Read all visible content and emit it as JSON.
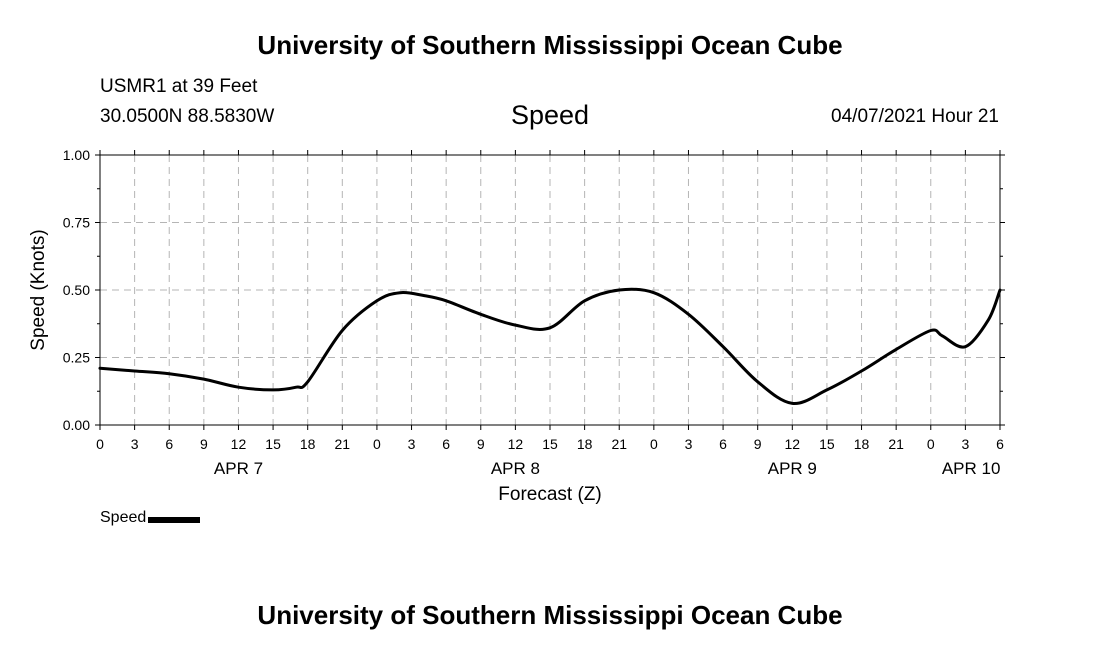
{
  "header": {
    "title_top": "University of Southern Mississippi Ocean Cube",
    "station": "USMR1 at 39 Feet",
    "coords": "30.0500N  88.5830W",
    "datestamp": "04/07/2021 Hour 21"
  },
  "footer": {
    "title_bottom": "University of Southern Mississippi Ocean Cube"
  },
  "legend": {
    "label": "Speed",
    "color": "#000000"
  },
  "chart_data": {
    "type": "line",
    "title": "Speed",
    "xlabel": "Forecast (Z)",
    "ylabel": "Speed (Knots)",
    "xlim": [
      0,
      78
    ],
    "ylim": [
      0,
      1
    ],
    "grid": true,
    "yticks": [
      0,
      0.25,
      0.5,
      0.75,
      1.0
    ],
    "ytick_labels": [
      "0.00",
      "0.25",
      "0.50",
      "0.75",
      "1.00"
    ],
    "xticks": [
      0,
      3,
      6,
      9,
      12,
      15,
      18,
      21,
      24,
      27,
      30,
      33,
      36,
      39,
      42,
      45,
      48,
      51,
      54,
      57,
      60,
      63,
      66,
      69,
      72,
      75,
      78
    ],
    "xtick_labels": [
      "0",
      "3",
      "6",
      "9",
      "12",
      "15",
      "18",
      "21",
      "0",
      "3",
      "6",
      "9",
      "12",
      "15",
      "18",
      "21",
      "0",
      "3",
      "6",
      "9",
      "12",
      "15",
      "18",
      "21",
      "0",
      "3",
      "6"
    ],
    "date_labels": [
      {
        "x": 12,
        "label": "APR 7"
      },
      {
        "x": 36,
        "label": "APR 8"
      },
      {
        "x": 60,
        "label": "APR 9"
      },
      {
        "x": 75.5,
        "label": "APR 10"
      }
    ],
    "series": [
      {
        "name": "Speed",
        "color": "#000000",
        "x": [
          0,
          3,
          6,
          9,
          12,
          15,
          17,
          18,
          21,
          24,
          26,
          28,
          30,
          33,
          36,
          39,
          42,
          45,
          48,
          51,
          54,
          57,
          60,
          63,
          66,
          69,
          72,
          73,
          75,
          77,
          78
        ],
        "y": [
          0.21,
          0.2,
          0.19,
          0.17,
          0.14,
          0.13,
          0.14,
          0.16,
          0.35,
          0.46,
          0.49,
          0.48,
          0.46,
          0.41,
          0.37,
          0.36,
          0.46,
          0.5,
          0.49,
          0.41,
          0.29,
          0.16,
          0.08,
          0.13,
          0.2,
          0.28,
          0.35,
          0.33,
          0.29,
          0.39,
          0.5
        ]
      }
    ]
  }
}
